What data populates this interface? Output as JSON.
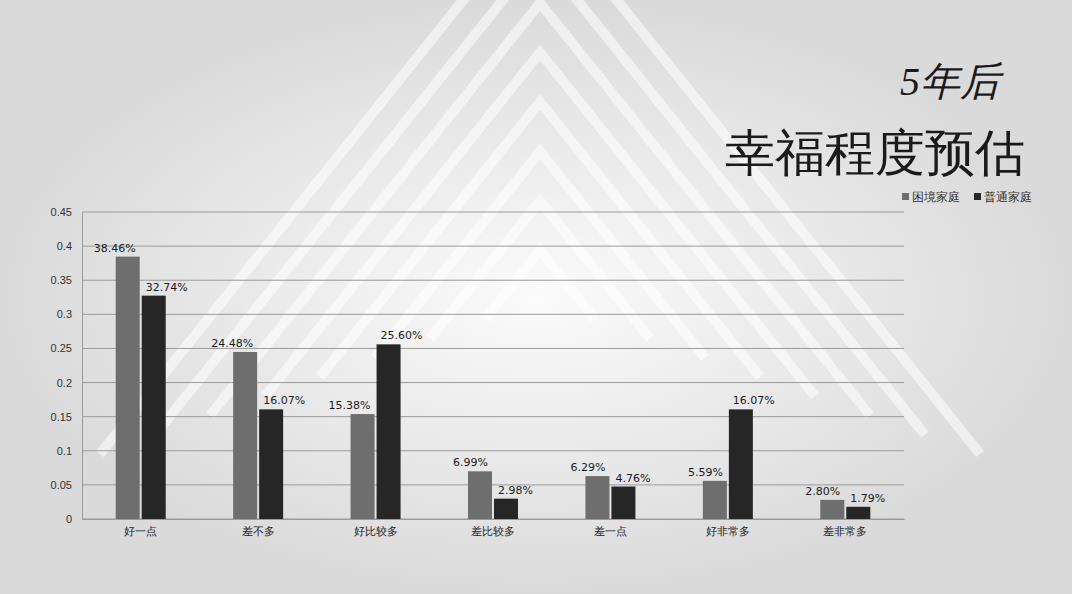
{
  "chart_data": {
    "type": "bar",
    "title": "幸福程度预估",
    "subtitle": "5年后",
    "categories": [
      "好一点",
      "差不多",
      "好比较多",
      "差比较多",
      "差一点",
      "好非常多",
      "差非常多"
    ],
    "series": [
      {
        "name": "困境家庭",
        "color": "#6e6e6e",
        "values": [
          0.3846,
          0.2448,
          0.1538,
          0.0699,
          0.0629,
          0.0559,
          0.028
        ],
        "value_labels": [
          "38.46%",
          "24.48%",
          "15.38%",
          "6.99%",
          "6.29%",
          "5.59%",
          "2.80%"
        ]
      },
      {
        "name": "普通家庭",
        "color": "#262626",
        "values": [
          0.3274,
          0.1607,
          0.256,
          0.0298,
          0.0476,
          0.1607,
          0.0179
        ],
        "value_labels": [
          "32.74%",
          "16.07%",
          "25.60%",
          "2.98%",
          "4.76%",
          "16.07%",
          "1.79%"
        ]
      }
    ],
    "ylim": [
      0,
      0.45
    ],
    "yticks": [
      0,
      0.05,
      0.1,
      0.15,
      0.2,
      0.25,
      0.3,
      0.35,
      0.4,
      0.45
    ],
    "grid": true,
    "legend": "top-right",
    "data_labels": true
  }
}
